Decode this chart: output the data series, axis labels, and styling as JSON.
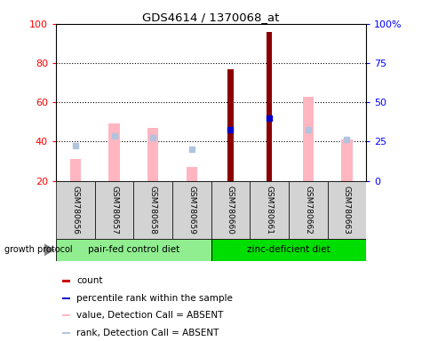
{
  "title": "GDS4614 / 1370068_at",
  "samples": [
    "GSM780656",
    "GSM780657",
    "GSM780658",
    "GSM780659",
    "GSM780660",
    "GSM780661",
    "GSM780662",
    "GSM780663"
  ],
  "count_values": [
    null,
    null,
    null,
    null,
    77,
    96,
    null,
    null
  ],
  "percentile_values": [
    null,
    null,
    null,
    null,
    46,
    52,
    null,
    null
  ],
  "value_absent": [
    31,
    49,
    47,
    27,
    null,
    null,
    63,
    41
  ],
  "rank_absent": [
    38,
    43,
    42,
    36,
    null,
    null,
    46,
    41
  ],
  "ylim_left": [
    20,
    100
  ],
  "ylim_right": [
    0,
    100
  ],
  "yticks_left": [
    20,
    40,
    60,
    80,
    100
  ],
  "yticks_right": [
    0,
    25,
    50,
    75,
    100
  ],
  "ytick_labels_right": [
    "0",
    "25",
    "50",
    "75",
    "100%"
  ],
  "group1_label": "pair-fed control diet",
  "group2_label": "zinc-deficient diet",
  "group1_color": "#90EE90",
  "group2_color": "#00DD00",
  "protocol_label": "growth protocol",
  "count_color": "#8B0000",
  "percentile_color": "#0000CD",
  "value_absent_color": "#FFB6C1",
  "rank_absent_color": "#B0C4DE",
  "legend_items": [
    "count",
    "percentile rank within the sample",
    "value, Detection Call = ABSENT",
    "rank, Detection Call = ABSENT"
  ],
  "legend_colors": [
    "#CC0000",
    "#0000CC",
    "#FFB6C1",
    "#B0C4DE"
  ],
  "sample_bg_color": "#D3D3D3"
}
